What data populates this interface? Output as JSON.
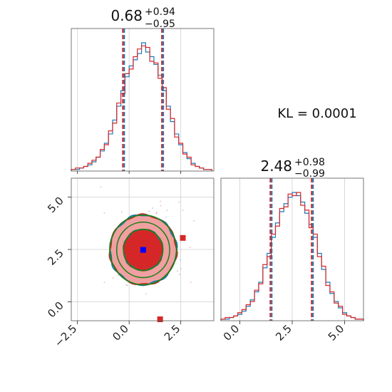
{
  "chart_data": {
    "type": "corner",
    "annotation": "KL = 0.0001",
    "parameters": [
      {
        "median": 0.68,
        "upper_err": 0.94,
        "lower_err": 0.95,
        "title_main": "0.68",
        "title_sup": "+0.94",
        "title_sub": "−0.95",
        "range": [
          -2.8,
          4.1
        ],
        "ticks": [
          -2.5,
          0.0,
          2.5
        ],
        "tick_labels": [
          "−2.5",
          "0.0",
          "2.5"
        ],
        "quantile_lines": [
          -0.27,
          1.62
        ]
      },
      {
        "median": 2.48,
        "upper_err": 0.98,
        "lower_err": 0.99,
        "title_main": "2.48",
        "title_sup": "+0.98",
        "title_sub": "−0.99",
        "range": [
          -0.9,
          5.9
        ],
        "ticks": [
          0.0,
          2.5,
          5.0
        ],
        "tick_labels": [
          "0.0",
          "2.5",
          "5.0"
        ],
        "quantile_lines": [
          1.49,
          3.46
        ]
      }
    ],
    "series": [
      {
        "color": "#1f77b4"
      },
      {
        "color": "#d62728"
      }
    ],
    "hist_1d": {
      "bin_edges_x": [
        -2.8,
        -2.6,
        -2.4,
        -2.2,
        -2.0,
        -1.8,
        -1.6,
        -1.4,
        -1.2,
        -1.0,
        -0.8,
        -0.6,
        -0.4,
        -0.2,
        0.0,
        0.2,
        0.4,
        0.6,
        0.8,
        1.0,
        1.2,
        1.4,
        1.6,
        1.8,
        2.0,
        2.2,
        2.4,
        2.6,
        2.8,
        3.0,
        3.2,
        3.4,
        3.6,
        3.8,
        4.0
      ],
      "counts_x_blue": [
        1,
        1,
        2,
        3,
        4,
        6,
        9,
        13,
        18,
        24,
        33,
        42,
        52,
        61,
        68,
        72,
        76,
        83,
        77,
        74,
        69,
        62,
        52,
        42,
        32,
        24,
        17,
        12,
        8,
        5,
        3,
        2,
        1,
        1
      ],
      "counts_x_red": [
        1,
        2,
        2,
        3,
        5,
        7,
        9,
        14,
        17,
        26,
        31,
        44,
        50,
        63,
        66,
        74,
        79,
        81,
        80,
        71,
        70,
        60,
        54,
        40,
        34,
        22,
        18,
        11,
        9,
        4,
        3,
        2,
        1,
        1
      ],
      "bin_edges_y": [
        -0.9,
        -0.7,
        -0.5,
        -0.3,
        -0.1,
        0.1,
        0.3,
        0.5,
        0.7,
        0.9,
        1.1,
        1.3,
        1.5,
        1.7,
        1.9,
        2.1,
        2.3,
        2.5,
        2.7,
        2.9,
        3.1,
        3.3,
        3.5,
        3.7,
        3.9,
        4.1,
        4.3,
        4.5,
        4.7,
        4.9,
        5.1,
        5.3,
        5.5,
        5.7,
        5.9
      ],
      "counts_y_blue": [
        1,
        1,
        2,
        3,
        4,
        6,
        9,
        13,
        18,
        24,
        33,
        42,
        52,
        61,
        68,
        73,
        77,
        80,
        78,
        74,
        67,
        60,
        52,
        42,
        32,
        24,
        17,
        12,
        8,
        5,
        3,
        2,
        1,
        1
      ],
      "counts_y_red": [
        1,
        2,
        2,
        3,
        5,
        7,
        10,
        12,
        19,
        23,
        35,
        40,
        54,
        59,
        70,
        71,
        79,
        78,
        80,
        72,
        69,
        58,
        54,
        40,
        34,
        22,
        18,
        11,
        9,
        4,
        3,
        2,
        1,
        1
      ]
    },
    "contours_2d": {
      "center": [
        0.68,
        2.48
      ],
      "sigma": [
        0.95,
        0.98
      ],
      "levels": [
        1.0,
        1.7
      ]
    },
    "markers": [
      {
        "x": 0.68,
        "y": 2.48,
        "color": "#0000ff"
      },
      {
        "x": 2.6,
        "y": 3.05,
        "color": "#d62728"
      },
      {
        "x": 1.5,
        "y": -0.95,
        "color": "#d62728"
      }
    ],
    "grid": true
  }
}
